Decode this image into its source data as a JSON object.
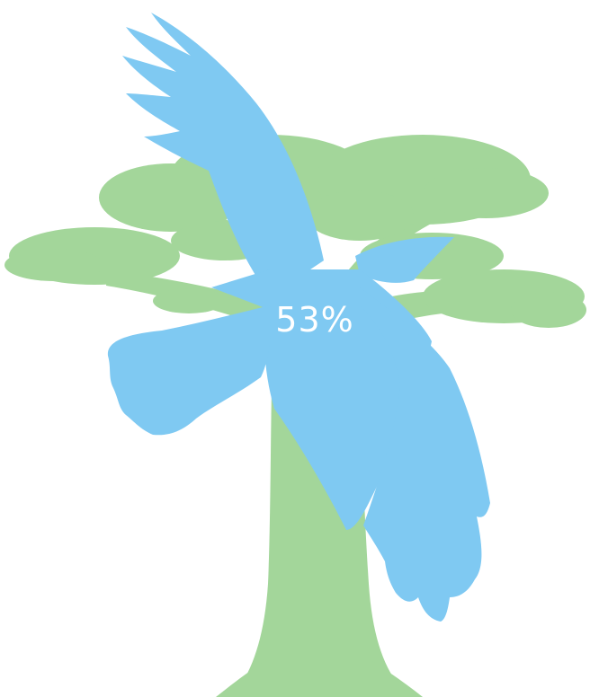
{
  "illustration": {
    "overlap_label": "53%",
    "overlap_value_percent": 53,
    "shapes": [
      "tree-silhouette",
      "bird-silhouette"
    ],
    "colors": {
      "tree": "#a3d69a",
      "bird": "#7fc9f2",
      "overlap": "#5fbb96",
      "background": "#ffffff",
      "label": "#ffffff"
    }
  }
}
